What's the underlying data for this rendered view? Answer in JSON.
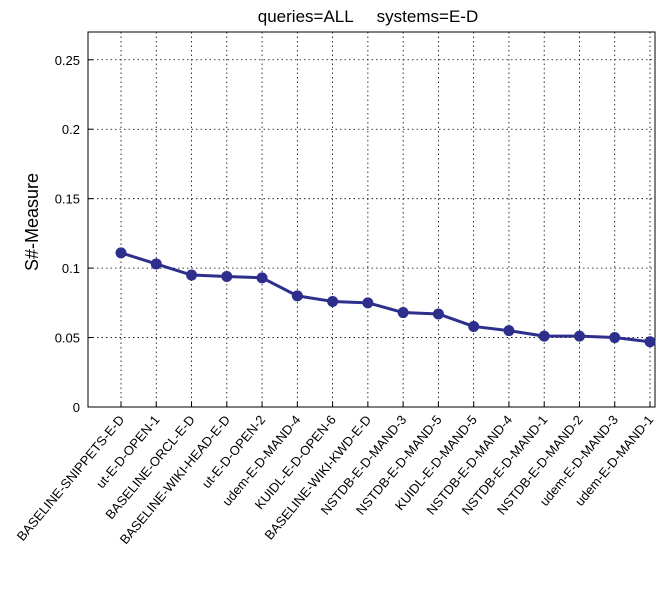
{
  "chart_data": {
    "type": "line",
    "title": "queries=ALL     systems=E-D",
    "xlabel": "",
    "ylabel": "S#-Measure",
    "ylim": [
      0,
      0.27
    ],
    "yticks": [
      "0",
      "0.05",
      "0.1",
      "0.15",
      "0.2",
      "0.25"
    ],
    "ytick_values": [
      0,
      0.05,
      0.1,
      0.15,
      0.2,
      0.25
    ],
    "grid": true,
    "categories": [
      "BASELINE-SNIPPETS-E-D",
      "ut-E-D-OPEN-1",
      "BASELINE-ORCL-E-D",
      "BASELINE-WIKI-HEAD-E-D",
      "ut-E-D-OPEN-2",
      "udem-E-D-MAND-4",
      "KUIDL-E-D-OPEN-6",
      "BASELINE-WIKI-KWD-E-D",
      "NSTDB-E-D-MAND-3",
      "NSTDB-E-D-MAND-5",
      "KUIDL-E-D-MAND-5",
      "NSTDB-E-D-MAND-4",
      "NSTDB-E-D-MAND-1",
      "NSTDB-E-D-MAND-2",
      "udem-E-D-MAND-3",
      "udem-E-D-MAND-1"
    ],
    "values": [
      0.111,
      0.103,
      0.095,
      0.094,
      0.093,
      0.08,
      0.076,
      0.075,
      0.068,
      0.067,
      0.058,
      0.055,
      0.051,
      0.051,
      0.05,
      0.047
    ],
    "colors": {
      "line": "#2e2e8c",
      "marker": "#2e2e8c"
    }
  }
}
